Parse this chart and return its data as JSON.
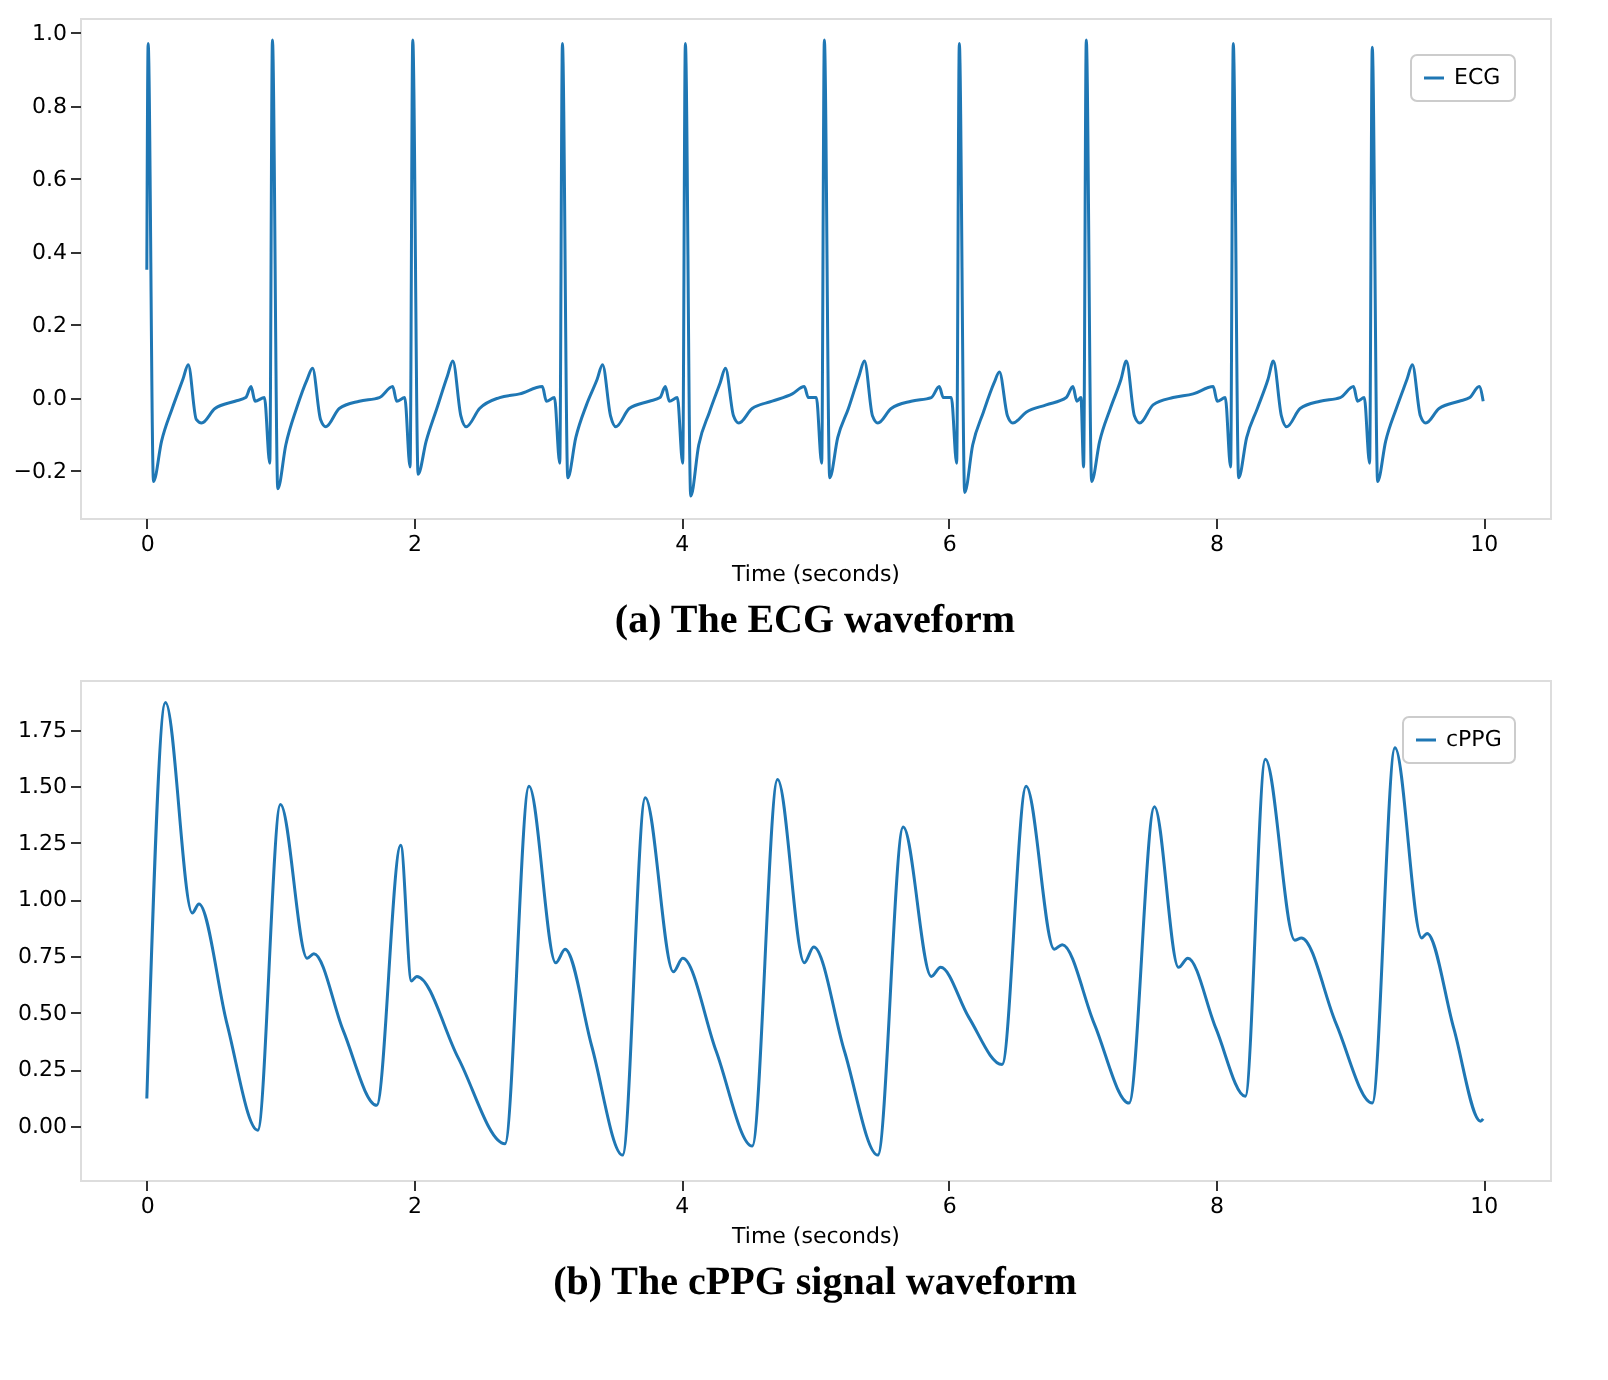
{
  "chart_data": [
    {
      "type": "line",
      "title": "(a) The ECG waveform",
      "xlabel": "Time (seconds)",
      "xlim": [
        -0.5,
        10.5
      ],
      "xticks": [
        0,
        2,
        4,
        6,
        8,
        10
      ],
      "ylim": [
        -0.33,
        1.04
      ],
      "yticks": [
        {
          "value": -0.2,
          "label": "−0.2"
        },
        {
          "value": 0,
          "label": "0.0"
        },
        {
          "value": 0.2,
          "label": "0.2"
        },
        {
          "value": 0.4,
          "label": "0.4"
        },
        {
          "value": 0.6,
          "label": "0.6"
        },
        {
          "value": 0.8,
          "label": "0.8"
        },
        {
          "value": 1,
          "label": "1.0"
        }
      ],
      "grid": false,
      "legend": "top right",
      "series": [
        {
          "name": "ECG",
          "color": "#1f77b4",
          "x": [
            0.0,
            0.01,
            0.05,
            0.11,
            0.19,
            0.27,
            0.31,
            0.37,
            0.41,
            0.51,
            0.66,
            0.74,
            0.78,
            0.81,
            0.88,
            0.92,
            0.94,
            0.98,
            1.04,
            1.12,
            1.2,
            1.24,
            1.3,
            1.34,
            1.44,
            1.59,
            1.74,
            1.84,
            1.87,
            1.93,
            1.97,
            1.99,
            2.03,
            2.09,
            2.17,
            2.25,
            2.29,
            2.35,
            2.39,
            2.49,
            2.64,
            2.79,
            2.96,
            2.99,
            3.05,
            3.09,
            3.11,
            3.15,
            3.21,
            3.29,
            3.37,
            3.41,
            3.47,
            3.51,
            3.61,
            3.76,
            3.84,
            3.88,
            3.91,
            3.97,
            4.01,
            4.03,
            4.07,
            4.13,
            4.21,
            4.29,
            4.33,
            4.39,
            4.43,
            4.53,
            4.68,
            4.83,
            4.92,
            4.95,
            5.01,
            5.05,
            5.07,
            5.11,
            5.17,
            5.25,
            5.33,
            5.37,
            5.43,
            5.47,
            5.57,
            5.72,
            5.87,
            5.93,
            5.96,
            6.02,
            6.06,
            6.08,
            6.12,
            6.18,
            6.26,
            6.34,
            6.38,
            6.44,
            6.48,
            6.58,
            6.73,
            6.88,
            6.93,
            6.96,
            6.99,
            7.01,
            7.03,
            7.07,
            7.13,
            7.21,
            7.29,
            7.33,
            7.39,
            7.43,
            7.53,
            7.68,
            7.83,
            7.98,
            8.01,
            8.07,
            8.11,
            8.13,
            8.17,
            8.23,
            8.31,
            8.39,
            8.43,
            8.49,
            8.53,
            8.63,
            8.78,
            8.93,
            9.03,
            9.06,
            9.11,
            9.15,
            9.17,
            9.21,
            9.27,
            9.35,
            9.43,
            9.47,
            9.53,
            9.57,
            9.67,
            9.82,
            9.9,
            9.97,
            10.0
          ],
          "values": [
            0.35,
            0.97,
            -0.23,
            -0.12,
            -0.03,
            0.05,
            0.09,
            -0.06,
            -0.07,
            -0.03,
            -0.01,
            0.0,
            0.03,
            -0.01,
            0.0,
            -0.18,
            0.98,
            -0.25,
            -0.13,
            -0.03,
            0.05,
            0.08,
            -0.06,
            -0.08,
            -0.03,
            -0.01,
            0.0,
            0.03,
            -0.01,
            0.0,
            -0.19,
            0.98,
            -0.21,
            -0.12,
            -0.03,
            0.06,
            0.1,
            -0.05,
            -0.08,
            -0.03,
            0.0,
            0.01,
            0.03,
            -0.01,
            0.0,
            -0.18,
            0.97,
            -0.22,
            -0.11,
            -0.02,
            0.05,
            0.09,
            -0.05,
            -0.08,
            -0.03,
            -0.01,
            0.0,
            0.03,
            -0.01,
            0.0,
            -0.18,
            0.97,
            -0.27,
            -0.13,
            -0.04,
            0.04,
            0.08,
            -0.05,
            -0.07,
            -0.03,
            -0.01,
            0.01,
            0.03,
            0.0,
            0.0,
            -0.18,
            0.98,
            -0.22,
            -0.11,
            -0.03,
            0.06,
            0.1,
            -0.05,
            -0.07,
            -0.03,
            -0.01,
            0.0,
            0.03,
            0.0,
            0.0,
            -0.18,
            0.97,
            -0.26,
            -0.13,
            -0.04,
            0.04,
            0.07,
            -0.05,
            -0.07,
            -0.04,
            -0.02,
            0.0,
            0.03,
            -0.01,
            0.0,
            -0.19,
            0.98,
            -0.23,
            -0.12,
            -0.03,
            0.05,
            0.1,
            -0.05,
            -0.07,
            -0.02,
            0.0,
            0.01,
            0.03,
            -0.01,
            0.0,
            -0.19,
            0.97,
            -0.22,
            -0.11,
            -0.03,
            0.05,
            0.1,
            -0.05,
            -0.08,
            -0.03,
            -0.01,
            0.0,
            0.03,
            -0.01,
            0.0,
            -0.18,
            0.96,
            -0.23,
            -0.12,
            -0.03,
            0.05,
            0.09,
            -0.05,
            -0.07,
            -0.03,
            -0.01,
            0.0,
            0.03,
            -0.01
          ]
        }
      ]
    },
    {
      "type": "line",
      "title": "(b) The cPPG signal waveform",
      "xlabel": "Time (seconds)",
      "xlim": [
        -0.5,
        10.5
      ],
      "xticks": [
        0,
        2,
        4,
        6,
        8,
        10
      ],
      "ylim": [
        -0.24,
        1.97
      ],
      "yticks": [
        {
          "value": 0,
          "label": "0.00"
        },
        {
          "value": 0.25,
          "label": "0.25"
        },
        {
          "value": 0.5,
          "label": "0.50"
        },
        {
          "value": 0.75,
          "label": "0.75"
        },
        {
          "value": 1,
          "label": "1.00"
        },
        {
          "value": 1.25,
          "label": "1.25"
        },
        {
          "value": 1.5,
          "label": "1.50"
        },
        {
          "value": 1.75,
          "label": "1.75"
        }
      ],
      "grid": false,
      "legend": "top right",
      "series": [
        {
          "name": "cPPG",
          "color": "#1f77b4",
          "x": [
            0.0,
            0.14,
            0.34,
            0.39,
            0.6,
            0.83,
            1.0,
            1.2,
            1.25,
            1.47,
            1.72,
            1.9,
            1.98,
            2.02,
            2.33,
            2.68,
            2.86,
            3.06,
            3.13,
            3.33,
            3.56,
            3.73,
            3.94,
            4.01,
            4.26,
            4.53,
            4.72,
            4.92,
            4.99,
            5.22,
            5.47,
            5.66,
            5.87,
            5.94,
            6.15,
            6.4,
            6.58,
            6.79,
            6.85,
            7.09,
            7.35,
            7.54,
            7.72,
            7.79,
            8.0,
            8.22,
            8.37,
            8.59,
            8.64,
            8.9,
            9.17,
            9.34,
            9.54,
            9.58,
            9.78,
            9.98,
            10.0
          ],
          "values": [
            0.12,
            1.87,
            0.94,
            0.98,
            0.45,
            -0.02,
            1.42,
            0.74,
            0.76,
            0.42,
            0.09,
            1.24,
            0.64,
            0.66,
            0.3,
            -0.08,
            1.5,
            0.72,
            0.78,
            0.35,
            -0.13,
            1.45,
            0.68,
            0.74,
            0.33,
            -0.09,
            1.53,
            0.72,
            0.79,
            0.33,
            -0.13,
            1.32,
            0.66,
            0.7,
            0.48,
            0.27,
            1.5,
            0.78,
            0.8,
            0.45,
            0.1,
            1.41,
            0.7,
            0.74,
            0.43,
            0.13,
            1.62,
            0.82,
            0.83,
            0.45,
            0.1,
            1.67,
            0.83,
            0.85,
            0.43,
            0.02,
            0.03
          ]
        }
      ]
    }
  ]
}
